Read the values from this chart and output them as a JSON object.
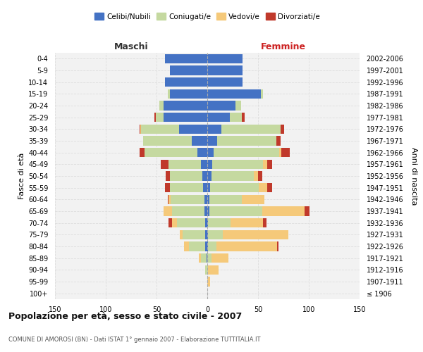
{
  "age_groups": [
    "100+",
    "95-99",
    "90-94",
    "85-89",
    "80-84",
    "75-79",
    "70-74",
    "65-69",
    "60-64",
    "55-59",
    "50-54",
    "45-49",
    "40-44",
    "35-39",
    "30-34",
    "25-29",
    "20-24",
    "15-19",
    "10-14",
    "5-9",
    "0-4"
  ],
  "birth_years": [
    "≤ 1906",
    "1907-1911",
    "1912-1916",
    "1917-1921",
    "1922-1926",
    "1927-1931",
    "1932-1936",
    "1937-1941",
    "1942-1946",
    "1947-1951",
    "1952-1956",
    "1957-1961",
    "1962-1966",
    "1967-1971",
    "1972-1976",
    "1977-1981",
    "1982-1986",
    "1987-1991",
    "1992-1996",
    "1997-2001",
    "2002-2006"
  ],
  "male_celibi": [
    0,
    0,
    0,
    1,
    2,
    2,
    2,
    3,
    3,
    4,
    5,
    6,
    10,
    15,
    28,
    43,
    43,
    37,
    42,
    37,
    42
  ],
  "male_coniugati": [
    0,
    0,
    2,
    5,
    16,
    22,
    28,
    32,
    33,
    33,
    32,
    32,
    52,
    48,
    37,
    8,
    4,
    2,
    0,
    0,
    0
  ],
  "male_vedovi": [
    0,
    0,
    0,
    2,
    5,
    3,
    5,
    8,
    2,
    0,
    0,
    0,
    0,
    0,
    1,
    0,
    0,
    0,
    0,
    0,
    0
  ],
  "male_divorziati": [
    0,
    0,
    0,
    0,
    0,
    0,
    3,
    0,
    1,
    5,
    4,
    8,
    5,
    0,
    1,
    1,
    0,
    0,
    0,
    0,
    0
  ],
  "female_celibi": [
    0,
    0,
    0,
    0,
    1,
    1,
    1,
    2,
    2,
    3,
    4,
    5,
    6,
    10,
    14,
    22,
    28,
    53,
    35,
    35,
    35
  ],
  "female_coniugati": [
    0,
    0,
    1,
    4,
    8,
    14,
    22,
    52,
    32,
    48,
    42,
    50,
    65,
    58,
    58,
    12,
    5,
    2,
    0,
    0,
    0
  ],
  "female_vedovi": [
    0,
    3,
    10,
    17,
    60,
    65,
    32,
    42,
    22,
    8,
    4,
    4,
    2,
    0,
    0,
    0,
    0,
    0,
    0,
    0,
    0
  ],
  "female_divorziati": [
    0,
    0,
    0,
    0,
    1,
    0,
    3,
    5,
    0,
    5,
    4,
    5,
    8,
    4,
    4,
    3,
    0,
    0,
    0,
    0,
    0
  ],
  "colors": {
    "celibi": "#4472c4",
    "coniugati": "#c5d9a0",
    "vedovi": "#f5c97a",
    "divorziati": "#c0392b"
  },
  "title": "Popolazione per età, sesso e stato civile - 2007",
  "subtitle": "COMUNE DI AMOROSI (BN) - Dati ISTAT 1° gennaio 2007 - Elaborazione TUTTITALIA.IT",
  "xlabel_left": "Maschi",
  "xlabel_right": "Femmine",
  "ylabel_left": "Fasce di età",
  "ylabel_right": "Anni di nascita",
  "xlim": 150,
  "legend_labels": [
    "Celibi/Nubili",
    "Coniugati/e",
    "Vedovi/e",
    "Divorziati/e"
  ],
  "background_color": "#ffffff",
  "grid_color": "#dddddd",
  "bar_height": 0.8
}
